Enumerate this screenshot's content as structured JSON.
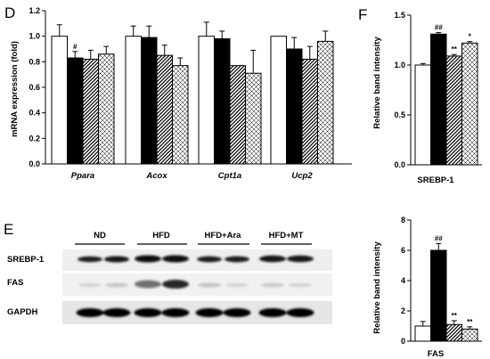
{
  "panels": {
    "D": "D",
    "E": "E",
    "F": "F"
  },
  "chart_data": [
    {
      "type": "bar",
      "panel": "D",
      "ylabel": "mRNA expression (fold)",
      "ylim": [
        0,
        1.2
      ],
      "yticks": [
        "0.0",
        "0.2",
        "0.4",
        "0.6",
        "0.8",
        "1.0",
        "1.2"
      ],
      "categories": [
        "Ppara",
        "Acox",
        "Cpt1a",
        "Ucp2"
      ],
      "series": [
        {
          "fill": "white",
          "values": [
            1.0,
            1.0,
            1.0,
            1.0
          ],
          "errors": [
            0.09,
            0.08,
            0.11,
            0.0
          ]
        },
        {
          "fill": "black",
          "values": [
            0.83,
            0.99,
            0.98,
            0.9
          ],
          "errors": [
            0.05,
            0.09,
            0.06,
            0.09
          ]
        },
        {
          "fill": "diagonal-hatch",
          "values": [
            0.82,
            0.85,
            0.77,
            0.82
          ],
          "errors": [
            0.07,
            0.08,
            0.0,
            0.1
          ]
        },
        {
          "fill": "cross-hatch",
          "values": [
            0.86,
            0.77,
            0.71,
            0.96
          ],
          "errors": [
            0.06,
            0.06,
            0.18,
            0.08
          ]
        }
      ],
      "annotations": [
        {
          "series": 1,
          "category": 0,
          "text": "#"
        }
      ]
    },
    {
      "type": "bar",
      "panel": "F",
      "ylabel": "Relative band intensity",
      "xlabel": "SREBP-1",
      "ylim": [
        0,
        1.5
      ],
      "yticks": [
        "0.0",
        "0.5",
        "1.0",
        "1.5"
      ],
      "values": [
        1.0,
        1.31,
        1.09,
        1.22
      ],
      "errors": [
        0.015,
        0.015,
        0.015,
        0.015
      ],
      "fills": [
        "white",
        "black",
        "diagonal-hatch",
        "cross-hatch"
      ],
      "annotations": [
        "",
        "##",
        "**",
        "*"
      ]
    },
    {
      "type": "bar",
      "panel": "F",
      "ylabel": "Relative band intensity",
      "xlabel": "FAS",
      "ylim": [
        0,
        8
      ],
      "yticks": [
        "0",
        "2",
        "4",
        "6",
        "8"
      ],
      "values": [
        1.0,
        6.0,
        1.1,
        0.8
      ],
      "errors": [
        0.3,
        0.45,
        0.25,
        0.15
      ],
      "fills": [
        "white",
        "black",
        "diagonal-hatch",
        "cross-hatch"
      ],
      "annotations": [
        "",
        "##",
        "**",
        "**"
      ]
    }
  ],
  "blot": {
    "groups": [
      "ND",
      "HFD",
      "HFD+Ara",
      "HFD+MT"
    ],
    "proteins": [
      "SREBP-1",
      "FAS",
      "GAPDH"
    ]
  }
}
